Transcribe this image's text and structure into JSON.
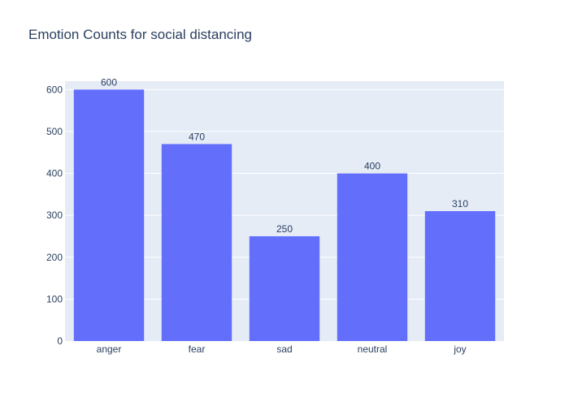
{
  "chart_data": {
    "type": "bar",
    "title": "Emotion Counts for social distancing",
    "xlabel": "",
    "ylabel": "",
    "categories": [
      "anger",
      "fear",
      "sad",
      "neutral",
      "joy"
    ],
    "values": [
      600,
      470,
      250,
      400,
      310
    ],
    "ylim": [
      0,
      620
    ],
    "yticks": [
      0,
      100,
      200,
      300,
      400,
      500,
      600
    ],
    "grid": true,
    "legend": "none",
    "colors": {
      "bar": "#636efa",
      "plot_background": "#e5ecf6",
      "grid": "#ffffff",
      "text": "#2a3f5f"
    }
  }
}
